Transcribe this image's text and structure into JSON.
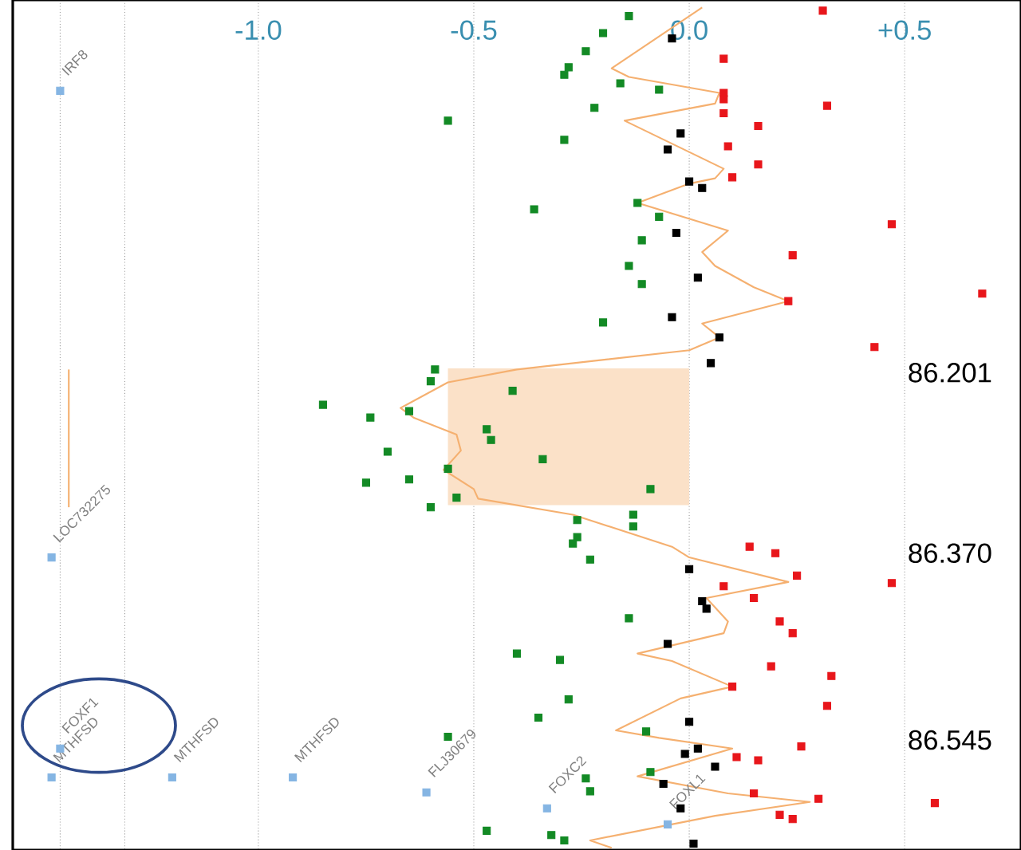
{
  "chart_data": {
    "type": "scatter",
    "xlim": [
      -1.57,
      0.77
    ],
    "ylim": [
      86.648,
      85.852
    ],
    "xticks": [
      {
        "value": -1.46,
        "label": null
      },
      {
        "value": -1.31,
        "label": null
      },
      {
        "value": -1.0,
        "label": "-1.0"
      },
      -0.5,
      {
        "value": 0.0,
        "label": "0.0"
      },
      {
        "value": 0.5,
        "label": "+0.5"
      }
    ],
    "yticks": [
      86.201,
      {
        "value": 86.37,
        "label": "86.370"
      },
      86.545
    ],
    "grid": "x",
    "series": [
      {
        "type": "area",
        "marker": "none",
        "color": "#fbe1c8",
        "x": [
          -0.56,
          -0.56,
          0.0,
          0.0
        ],
        "values": [
          86.197,
          86.325,
          86.325,
          86.197
        ]
      },
      {
        "type": "line",
        "marker": "none",
        "color": "#f5b070",
        "x": [
          -1.44,
          -1.44
        ],
        "values": [
          86.198,
          86.327
        ]
      },
      {
        "marker": "square",
        "color": "#85b5e3",
        "x": [
          -1.46,
          -1.48,
          -1.46,
          -1.48,
          -1.2,
          -0.92,
          -0.61,
          -0.33,
          -0.05
        ],
        "values": [
          85.937,
          86.374,
          86.553,
          86.58,
          86.58,
          86.58,
          86.594,
          86.609,
          86.624
        ]
      },
      {
        "type": "line",
        "marker": "none",
        "color": "#f5b070",
        "x": [
          0.03,
          -0.18,
          -0.14,
          0.07,
          0.06,
          -0.15,
          0.08,
          0.06,
          0.0,
          -0.12,
          0.09,
          0.03,
          0.06,
          0.15,
          0.23,
          0.03,
          0.07,
          0.0,
          -0.4,
          -0.56,
          -0.67,
          -0.64,
          -0.54,
          -0.53,
          -0.57,
          -0.5,
          -0.49,
          -0.27,
          -0.04,
          0.0,
          0.23,
          0.04,
          0.09,
          0.08,
          -0.12,
          -0.04,
          0.1,
          -0.02,
          -0.17,
          -0.07,
          0.1,
          -0.12,
          0.09,
          0.28,
          0.06,
          -0.23,
          -0.18
        ],
        "values": [
          85.859,
          85.916,
          85.924,
          85.939,
          85.949,
          85.965,
          86.01,
          86.019,
          86.024,
          86.042,
          86.068,
          86.088,
          86.101,
          86.121,
          86.134,
          86.155,
          86.168,
          86.18,
          86.198,
          86.21,
          86.234,
          86.243,
          86.259,
          86.274,
          86.292,
          86.31,
          86.319,
          86.334,
          86.364,
          86.374,
          86.397,
          86.412,
          86.434,
          86.445,
          86.464,
          86.471,
          86.495,
          86.506,
          86.536,
          86.543,
          86.553,
          86.579,
          86.595,
          86.603,
          86.616,
          86.639,
          86.646
        ]
      },
      {
        "marker": "square",
        "color": "#138a25",
        "x": [
          -0.14,
          -0.2,
          -0.24,
          -0.28,
          -0.29,
          -0.16,
          -0.07,
          -0.22,
          -0.56,
          -0.29,
          -0.36,
          -0.12,
          -0.07,
          -0.11,
          -0.14,
          -0.11,
          -0.2,
          -0.59,
          -0.6,
          -0.41,
          -0.85,
          -0.74,
          -0.65,
          -0.47,
          -0.46,
          -0.7,
          -0.34,
          -0.75,
          -0.65,
          -0.56,
          -0.09,
          -0.54,
          -0.6,
          -0.26,
          -0.13,
          -0.13,
          -0.26,
          -0.27,
          -0.23,
          -0.14,
          -0.4,
          -0.3,
          -0.28,
          -0.35,
          -0.56,
          -0.1,
          -0.09,
          -0.24,
          -0.23,
          -0.47,
          -0.32,
          -0.29
        ],
        "values": [
          85.867,
          85.883,
          85.9,
          85.915,
          85.922,
          85.93,
          85.936,
          85.953,
          85.965,
          85.983,
          86.048,
          86.042,
          86.055,
          86.077,
          86.101,
          86.118,
          86.154,
          86.198,
          86.209,
          86.218,
          86.231,
          86.243,
          86.237,
          86.254,
          86.264,
          86.275,
          86.282,
          86.304,
          86.301,
          86.291,
          86.31,
          86.318,
          86.327,
          86.339,
          86.334,
          86.345,
          86.355,
          86.361,
          86.376,
          86.431,
          86.464,
          86.47,
          86.507,
          86.524,
          86.542,
          86.537,
          86.575,
          86.581,
          86.593,
          86.63,
          86.634,
          86.639
        ]
      },
      {
        "marker": "square",
        "color": "#000000",
        "x": [
          -0.04,
          -0.02,
          -0.05,
          0.0,
          0.03,
          -0.03,
          0.02,
          -0.04,
          0.07,
          0.05,
          0.0,
          0.03,
          0.04,
          -0.05,
          0.0,
          0.02,
          -0.01,
          0.06,
          -0.06,
          -0.02,
          0.01
        ],
        "values": [
          85.888,
          85.977,
          85.992,
          86.022,
          86.028,
          86.07,
          86.112,
          86.149,
          86.168,
          86.192,
          86.385,
          86.415,
          86.422,
          86.455,
          86.528,
          86.553,
          86.558,
          86.57,
          86.586,
          86.609,
          86.642
        ]
      },
      {
        "marker": "square",
        "color": "#e8161b",
        "x": [
          0.31,
          0.08,
          0.08,
          0.08,
          0.32,
          0.08,
          0.16,
          0.09,
          0.16,
          0.1,
          0.47,
          0.24,
          0.23,
          0.68,
          0.43,
          0.14,
          0.2,
          0.25,
          0.47,
          0.08,
          0.15,
          0.21,
          0.24,
          0.19,
          0.33,
          0.1,
          0.32,
          0.26,
          0.11,
          0.16,
          0.15,
          0.3,
          0.57,
          0.21,
          0.24
        ],
        "values": [
          85.862,
          85.907,
          85.939,
          85.945,
          85.951,
          85.958,
          85.97,
          85.989,
          86.006,
          86.018,
          86.062,
          86.091,
          86.134,
          86.127,
          86.177,
          86.364,
          86.37,
          86.391,
          86.398,
          86.401,
          86.412,
          86.434,
          86.445,
          86.476,
          86.485,
          86.495,
          86.513,
          86.551,
          86.561,
          86.564,
          86.595,
          86.6,
          86.604,
          86.615,
          86.619
        ]
      }
    ],
    "annotations": [
      "IRF8",
      "LOC732275",
      "FOXF1",
      "MTHFSD",
      "MTHFSD",
      "MTHFSD",
      "FLJ30679",
      "FOXC2",
      "FOXL1"
    ]
  }
}
